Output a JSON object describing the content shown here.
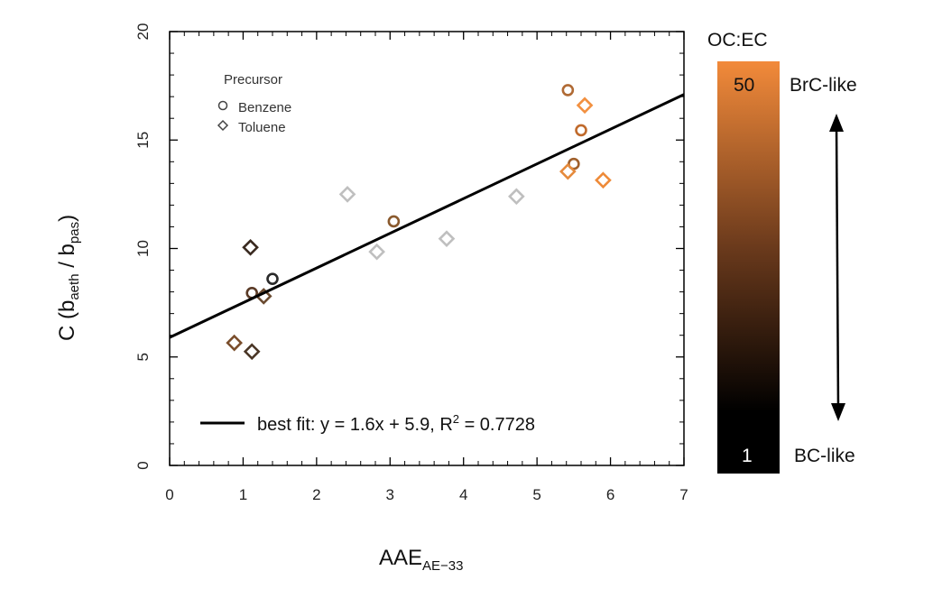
{
  "chart_data": {
    "type": "scatter",
    "xlabel": "AAE",
    "xlabel_sub": "AE−33",
    "ylabel_main": "C (b",
    "ylabel_sub1": "aeth",
    "ylabel_mid": " / b",
    "ylabel_sub2": "pas",
    "ylabel_end": ")",
    "xlim": [
      0,
      7
    ],
    "ylim": [
      0,
      20
    ],
    "x_ticks": [
      "0",
      "1",
      "2",
      "3",
      "4",
      "5",
      "6",
      "7"
    ],
    "y_ticks": [
      "0",
      "5",
      "10",
      "15",
      "20"
    ],
    "grid": false,
    "legend": {
      "title": "Precursor",
      "placement": "top-left",
      "entries": [
        {
          "label": "Benzene",
          "marker": "circle"
        },
        {
          "label": "Toluene",
          "marker": "diamond"
        }
      ]
    },
    "fit": {
      "slope": 1.6,
      "intercept": 5.9,
      "label_prefix": "best fit: y = 1.6x + 5.9, R",
      "label_sup": "2",
      "label_suffix": " = 0.7728"
    },
    "colorbar": {
      "title": "OC:EC",
      "max_label": "50",
      "min_label": "1",
      "top_text": "BrC-like",
      "bottom_text": "BC-like",
      "colors": [
        "#f28a3a",
        "#6b3a1c",
        "#000000"
      ]
    },
    "series": [
      {
        "marker": "circle",
        "points": [
          {
            "x": 1.12,
            "y": 7.95,
            "color": "#5a3a26"
          },
          {
            "x": 1.4,
            "y": 8.6,
            "color": "#2a2a2a"
          },
          {
            "x": 3.05,
            "y": 11.25,
            "color": "#8a5a2e"
          },
          {
            "x": 5.42,
            "y": 17.3,
            "color": "#b06a34"
          },
          {
            "x": 5.6,
            "y": 15.45,
            "color": "#c06a2c"
          },
          {
            "x": 5.5,
            "y": 13.9,
            "color": "#a0602c"
          }
        ]
      },
      {
        "marker": "diamond",
        "points": [
          {
            "x": 1.1,
            "y": 10.05,
            "color": "#3a2a20"
          },
          {
            "x": 1.28,
            "y": 7.8,
            "color": "#6a4a30"
          },
          {
            "x": 0.88,
            "y": 5.65,
            "color": "#7a4e2c"
          },
          {
            "x": 1.12,
            "y": 5.25,
            "color": "#4a3626"
          },
          {
            "x": 2.42,
            "y": 12.5,
            "color": "#bfbfbf"
          },
          {
            "x": 2.82,
            "y": 9.85,
            "color": "#bfbfbf"
          },
          {
            "x": 3.77,
            "y": 10.45,
            "color": "#bfbfbf"
          },
          {
            "x": 4.72,
            "y": 12.4,
            "color": "#bfbfbf"
          },
          {
            "x": 5.42,
            "y": 13.55,
            "color": "#e58a3c"
          },
          {
            "x": 5.65,
            "y": 16.6,
            "color": "#f29040"
          },
          {
            "x": 5.9,
            "y": 13.15,
            "color": "#ee8a38"
          }
        ]
      }
    ]
  }
}
